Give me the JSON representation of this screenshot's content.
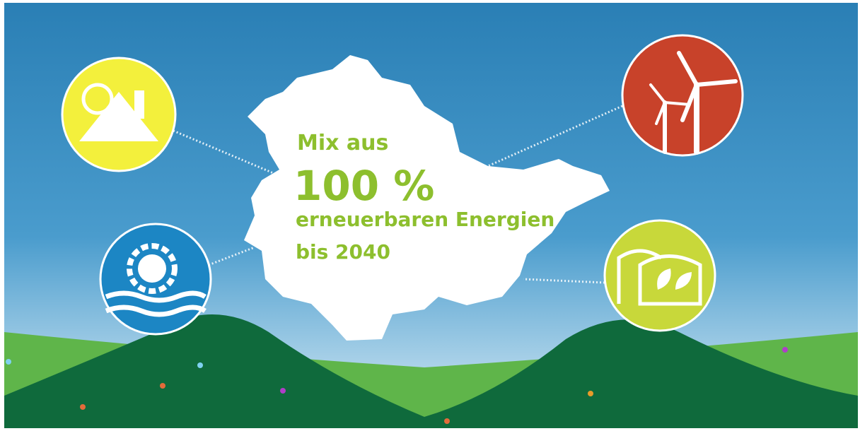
{
  "headline": {
    "line1": "Mix aus",
    "line2": "100 %",
    "line3": "erneuerbaren Energien",
    "line4": "bis 2040"
  }
}
